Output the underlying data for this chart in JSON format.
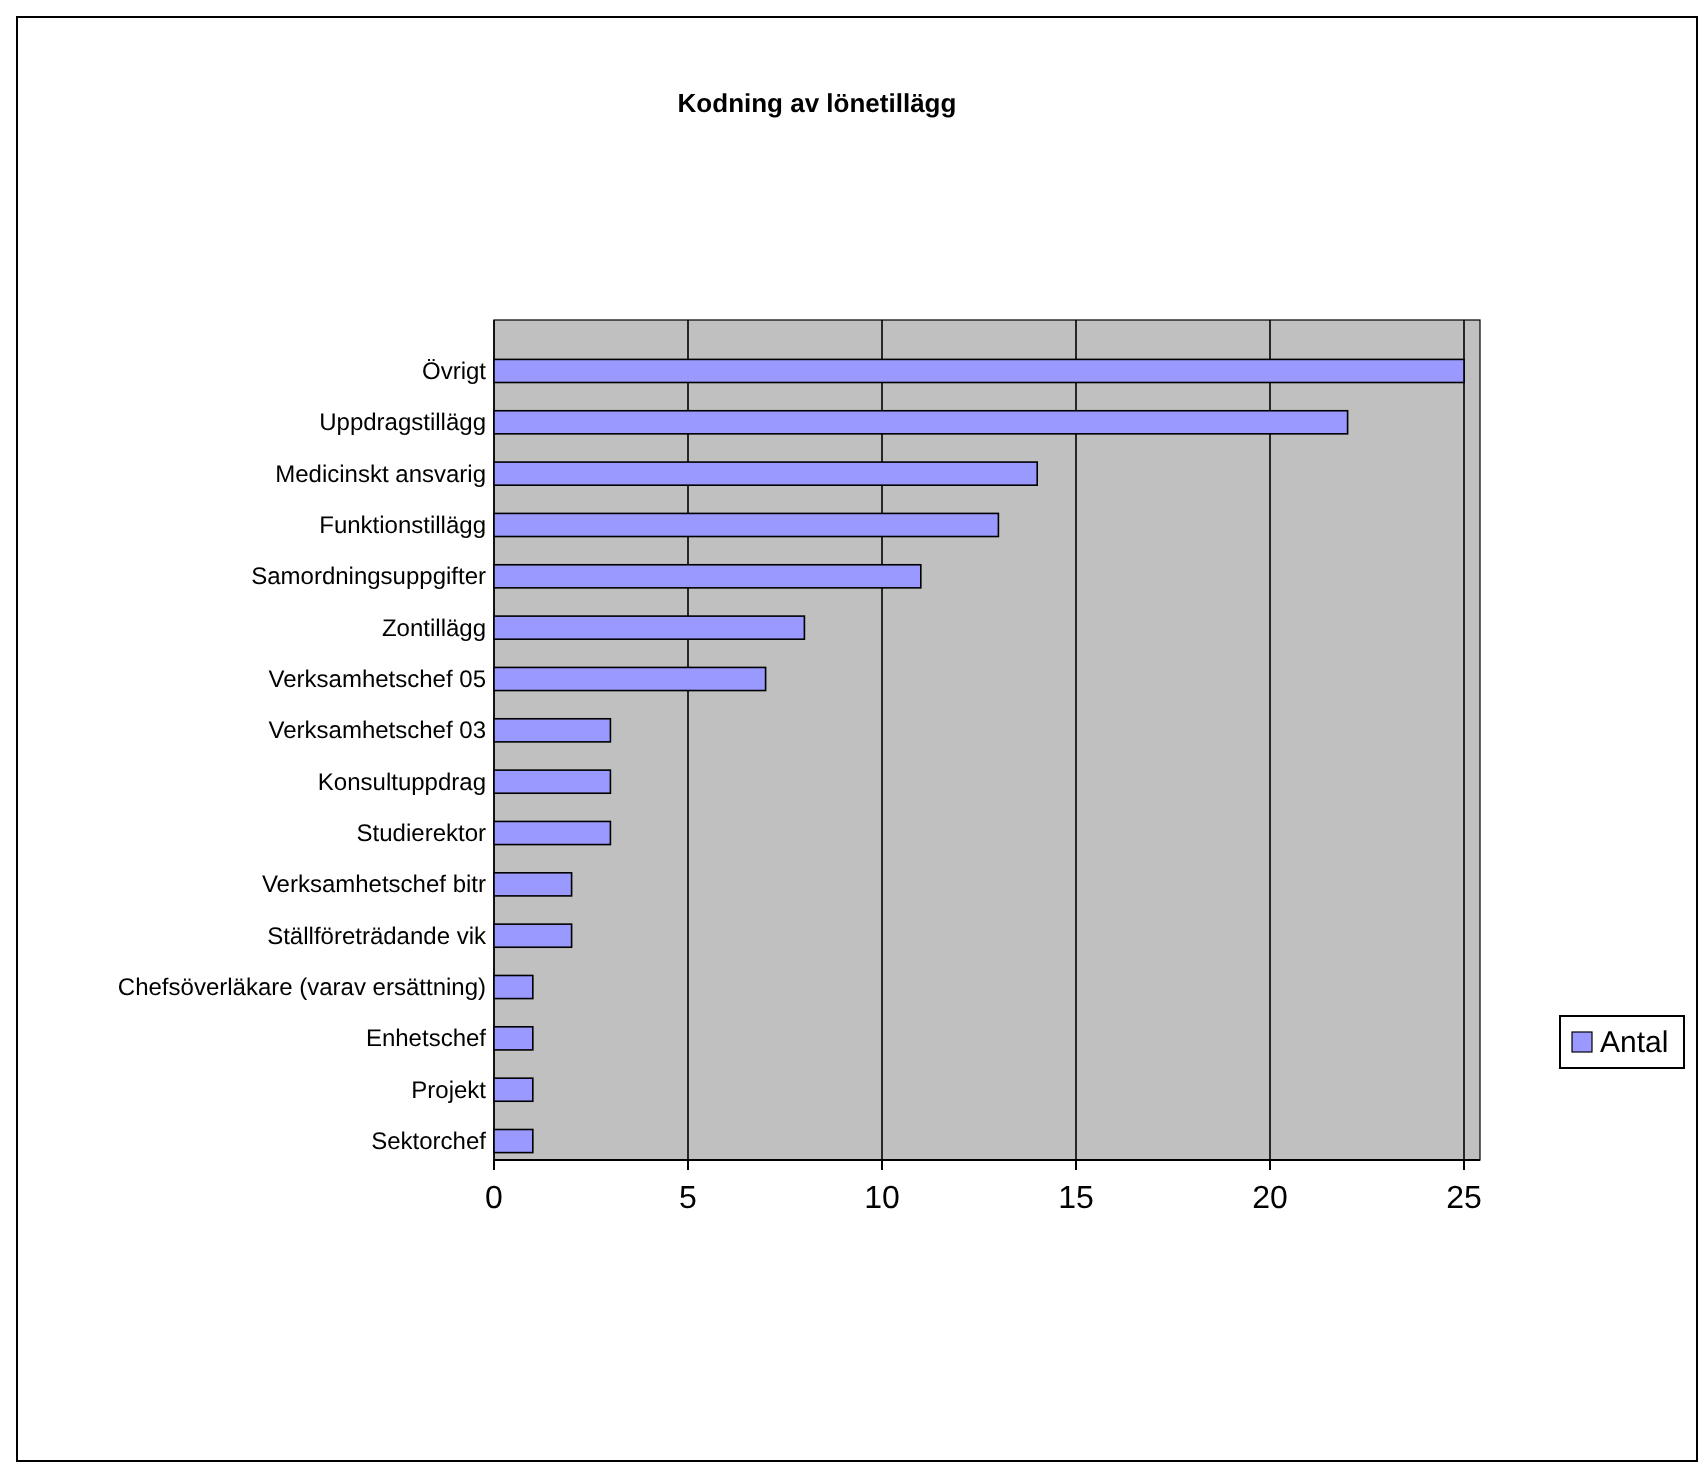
{
  "chart_data": {
    "type": "bar",
    "title": "Kodning av lönetillägg",
    "orientation": "horizontal",
    "categories": [
      "Övrigt",
      "Uppdragstillägg",
      "Medicinskt ansvarig",
      "Funktionstillägg",
      "Samordningsuppgifter",
      "Zontillägg",
      "Verksamhetschef 05",
      "Verksamhetschef 03",
      "Konsultuppdrag",
      "Studierektor",
      "Verksamhetschef bitr",
      "Ställföreträdande vik",
      "Chefsöverläkare (varav ersättning)",
      "Enhetschef",
      "Projekt",
      "Sektorchef"
    ],
    "series": [
      {
        "name": "Antal",
        "color": "#9999ff",
        "values": [
          25,
          22,
          14,
          13,
          11,
          8,
          7,
          3,
          3,
          3,
          2,
          2,
          1,
          1,
          1,
          1
        ]
      }
    ],
    "xlim": [
      0,
      25
    ],
    "xticks": [
      0,
      5,
      10,
      15,
      20,
      25
    ],
    "grid": "x",
    "legend": "right"
  }
}
